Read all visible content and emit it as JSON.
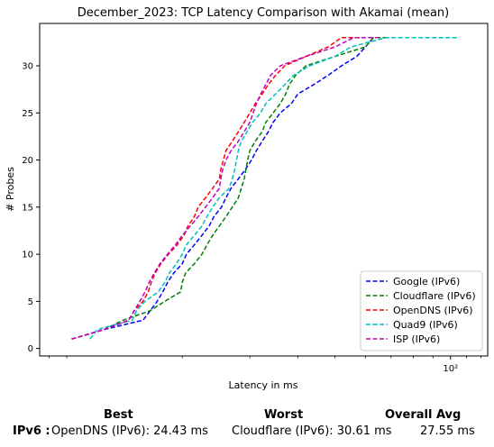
{
  "chart_data": {
    "type": "line",
    "title": "December_2023: TCP Latency Comparison with Akamai (mean)",
    "xlabel": "Latency in ms",
    "ylabel": "# Probes",
    "xscale": "log",
    "xlim": [
      8.5,
      125
    ],
    "ylim": [
      -0.8,
      34.5
    ],
    "xticks": [
      100
    ],
    "xtick_labels": [
      "10²"
    ],
    "yticks": [
      0,
      5,
      10,
      15,
      20,
      25,
      30
    ],
    "grid": false,
    "legend_position": "lower-right",
    "series": [
      {
        "name": "Google (IPv6)",
        "color": "#0000ff",
        "style": "dashed",
        "x": [
          10.3,
          12.5,
          15.8,
          16.5,
          17.2,
          17.8,
          18.3,
          19.0,
          20.0,
          20.5,
          21.5,
          22.5,
          23.5,
          24.2,
          25.3,
          26.0,
          26.8,
          28.0,
          29.2,
          30.3,
          31.2,
          32.3,
          33.5,
          34.5,
          36.0,
          38.5,
          40.0,
          44.0,
          48.0,
          52.0,
          57.0,
          60.0,
          63.0,
          66.0
        ],
        "y": [
          1,
          2,
          3,
          4,
          5,
          6,
          7,
          8,
          9,
          10,
          11,
          12,
          13,
          14,
          15,
          16,
          17,
          18,
          19,
          20,
          21,
          22,
          23,
          24,
          25,
          26,
          27,
          28,
          29,
          30,
          31,
          32,
          33,
          33
        ]
      },
      {
        "name": "Cloudflare (IPv6)",
        "color": "#008000",
        "style": "dashed",
        "x": [
          10.3,
          12.5,
          14.0,
          16.5,
          18.0,
          19.8,
          20.0,
          20.4,
          21.5,
          22.5,
          23.2,
          24.0,
          25.0,
          26.0,
          27.0,
          28.0,
          28.5,
          29.0,
          29.3,
          29.6,
          30.0,
          31.0,
          32.3,
          33.0,
          34.5,
          36.0,
          37.2,
          38.0,
          39.5,
          42.0,
          50.0,
          60.0,
          63.0,
          68.0
        ],
        "y": [
          1,
          2,
          3,
          4,
          5,
          6,
          7,
          8,
          9,
          10,
          11,
          12,
          13,
          14,
          15,
          16,
          17,
          18,
          19,
          20,
          21,
          22,
          23,
          24,
          25,
          26,
          27,
          28,
          29,
          30,
          31,
          32,
          33,
          33
        ]
      },
      {
        "name": "OpenDNS (IPv6)",
        "color": "#ff0000",
        "style": "dashed",
        "x": [
          10.3,
          12.5,
          14.5,
          15.0,
          15.8,
          16.3,
          16.6,
          17.0,
          17.6,
          18.4,
          19.4,
          20.2,
          20.7,
          21.5,
          22.0,
          23.0,
          24.0,
          25.0,
          25.2,
          25.6,
          26.0,
          27.0,
          28.0,
          29.0,
          30.0,
          31.0,
          32.3,
          33.5,
          35.0,
          37.0,
          42.0,
          48.0,
          52.0,
          60.0
        ],
        "y": [
          1,
          2,
          3,
          4,
          5,
          6,
          7,
          8,
          9,
          10,
          11,
          12,
          13,
          14,
          15,
          16,
          17,
          18,
          19,
          20,
          21,
          22,
          23,
          24,
          25,
          26,
          27,
          28,
          29,
          30,
          31,
          32,
          33,
          33
        ]
      },
      {
        "name": "Quad9 (IPv6)",
        "color": "#00bfbf",
        "style": "dashed",
        "x": [
          11.5,
          12.0,
          14.8,
          15.2,
          16.0,
          17.3,
          18.0,
          18.5,
          19.3,
          20.0,
          20.5,
          21.5,
          22.5,
          23.2,
          24.0,
          25.0,
          26.5,
          27.0,
          27.4,
          27.7,
          28.0,
          28.5,
          29.5,
          30.5,
          32.0,
          33.0,
          35.0,
          37.0,
          39.0,
          43.0,
          50.0,
          55.0,
          68.0,
          105.0
        ],
        "y": [
          1,
          2,
          3,
          4,
          5,
          6,
          7,
          8,
          9,
          10,
          11,
          12,
          13,
          14,
          15,
          16,
          17,
          18,
          19,
          20,
          21,
          22,
          23,
          24,
          25,
          26,
          27,
          28,
          29,
          30,
          31,
          32,
          33,
          33
        ]
      },
      {
        "name": "ISP (IPv6)",
        "color": "#bf00bf",
        "style": "dashed",
        "x": [
          10.3,
          12.5,
          14.5,
          15.0,
          15.5,
          16.0,
          16.4,
          16.9,
          17.5,
          18.3,
          19.2,
          20.0,
          21.0,
          22.0,
          23.0,
          24.0,
          25.0,
          25.2,
          25.5,
          26.0,
          26.8,
          28.0,
          29.0,
          30.0,
          30.6,
          31.2,
          32.0,
          33.0,
          34.0,
          36.0,
          42.0,
          50.0,
          56.0,
          65.0
        ],
        "y": [
          1,
          2,
          3,
          4,
          5,
          6,
          7,
          8,
          9,
          10,
          11,
          12,
          13,
          14,
          15,
          16,
          17,
          18,
          19,
          20,
          21,
          22,
          23,
          24,
          25,
          26,
          27,
          28,
          29,
          30,
          31,
          32,
          33,
          33
        ]
      }
    ]
  },
  "summary": {
    "headers": {
      "best": "Best",
      "worst": "Worst",
      "overall_avg": "Overall Avg"
    },
    "row_label": "IPv6 :",
    "best": "OpenDNS (IPv6): 24.43 ms",
    "worst": "Cloudflare (IPv6): 30.61 ms",
    "overall_avg": "27.55 ms"
  }
}
